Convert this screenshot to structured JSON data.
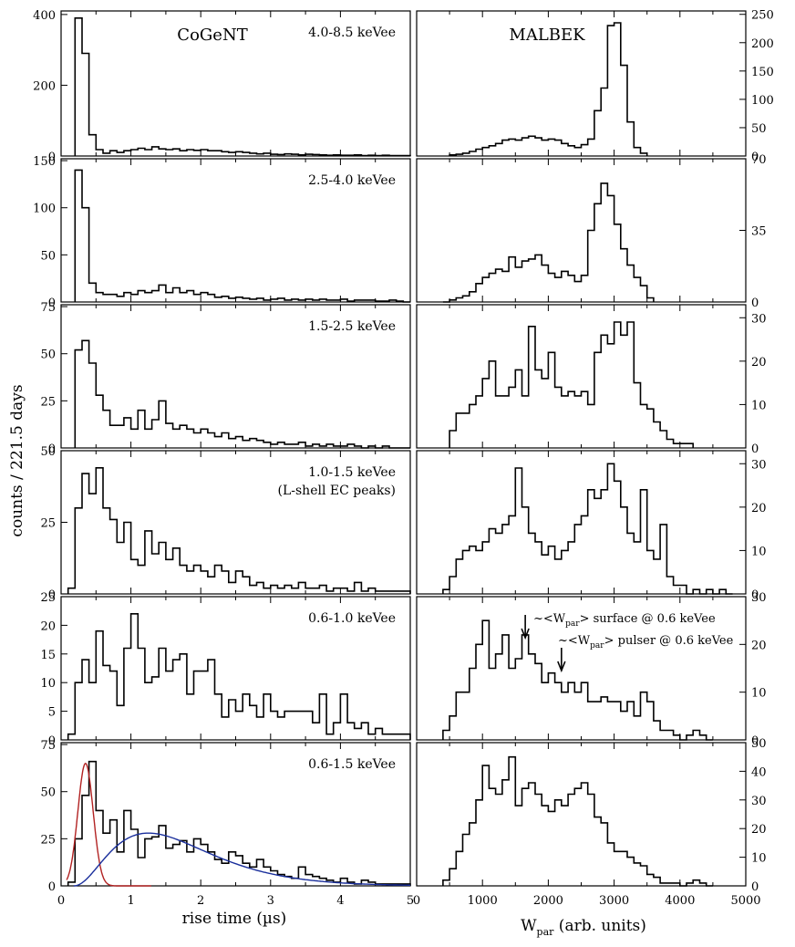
{
  "figure": {
    "y_axis_label": "counts / 221.5 days",
    "left_x_label": "rise time (µs)",
    "right_x_label_main": "W",
    "right_x_label_sub": "par",
    "right_x_label_tail": " (arb. units)",
    "left_column_title": "CoGeNT",
    "right_column_title": "MALBEK"
  },
  "chart_data": [
    {
      "type": "bar",
      "panel": "CoGeNT",
      "energy_label": "4.0-8.5 keVee",
      "xlim": [
        0,
        5
      ],
      "ylim": [
        0,
        410
      ],
      "yticks": [
        0,
        200,
        400
      ],
      "bin_edges": [
        0.2,
        0.3,
        0.4,
        0.5,
        0.6,
        0.7,
        0.8,
        0.9,
        1.0,
        1.1,
        1.2,
        1.3,
        1.4,
        1.5,
        1.6,
        1.7,
        1.8,
        1.9,
        2.0,
        2.1,
        2.2,
        2.3,
        2.4,
        2.5,
        2.6,
        2.7,
        2.8,
        2.9,
        3.0,
        3.1,
        3.2,
        3.3,
        3.4,
        3.5,
        3.6,
        3.7,
        3.8,
        3.9,
        4.0,
        4.1,
        4.2,
        4.3,
        4.4,
        4.5,
        4.6,
        4.7,
        4.8,
        4.9,
        5.0
      ],
      "values": [
        390,
        290,
        60,
        18,
        8,
        15,
        10,
        15,
        18,
        22,
        18,
        26,
        20,
        18,
        20,
        15,
        18,
        16,
        18,
        15,
        15,
        12,
        10,
        12,
        10,
        8,
        6,
        8,
        5,
        4,
        6,
        5,
        3,
        5,
        4,
        3,
        2,
        3,
        2,
        2,
        3,
        1,
        2,
        1,
        2,
        1,
        1,
        1
      ]
    },
    {
      "type": "bar",
      "panel": "MALBEK",
      "energy_label": "",
      "xlim": [
        0,
        5000
      ],
      "ylim": [
        0,
        256
      ],
      "yticks": [
        0,
        50,
        100,
        150,
        200,
        250
      ],
      "bin_edges": [
        500,
        600,
        700,
        800,
        900,
        1000,
        1100,
        1200,
        1300,
        1400,
        1500,
        1600,
        1700,
        1800,
        1900,
        2000,
        2100,
        2200,
        2300,
        2400,
        2500,
        2600,
        2700,
        2800,
        2900,
        3000,
        3100,
        3200,
        3300,
        3400,
        3500
      ],
      "values": [
        2,
        3,
        5,
        8,
        12,
        15,
        18,
        22,
        28,
        30,
        28,
        32,
        35,
        32,
        28,
        30,
        28,
        22,
        18,
        15,
        20,
        30,
        80,
        120,
        230,
        235,
        160,
        60,
        15,
        5
      ]
    },
    {
      "type": "bar",
      "panel": "CoGeNT",
      "energy_label": "2.5-4.0 keVee",
      "xlim": [
        0,
        5
      ],
      "ylim": [
        0,
        152
      ],
      "yticks": [
        0,
        50,
        100,
        150
      ],
      "bin_edges": [
        0.2,
        0.3,
        0.4,
        0.5,
        0.6,
        0.7,
        0.8,
        0.9,
        1.0,
        1.1,
        1.2,
        1.3,
        1.4,
        1.5,
        1.6,
        1.7,
        1.8,
        1.9,
        2.0,
        2.1,
        2.2,
        2.3,
        2.4,
        2.5,
        2.6,
        2.7,
        2.8,
        2.9,
        3.0,
        3.1,
        3.2,
        3.3,
        3.4,
        3.5,
        3.6,
        3.7,
        3.8,
        3.9,
        4.0,
        4.1,
        4.2,
        4.3,
        4.4,
        4.5,
        4.6,
        4.7,
        4.8,
        4.9,
        5.0
      ],
      "values": [
        140,
        100,
        20,
        10,
        8,
        8,
        6,
        10,
        8,
        12,
        10,
        12,
        18,
        10,
        15,
        10,
        12,
        8,
        10,
        8,
        5,
        6,
        4,
        5,
        4,
        3,
        4,
        2,
        3,
        4,
        2,
        3,
        2,
        3,
        2,
        3,
        2,
        2,
        3,
        1,
        2,
        2,
        2,
        1,
        1,
        2,
        1,
        0
      ]
    },
    {
      "type": "bar",
      "panel": "MALBEK",
      "energy_label": "",
      "xlim": [
        0,
        5000
      ],
      "ylim": [
        0,
        70
      ],
      "yticks": [
        0,
        35,
        70
      ],
      "bin_edges": [
        400,
        500,
        600,
        700,
        800,
        900,
        1000,
        1100,
        1200,
        1300,
        1400,
        1500,
        1600,
        1700,
        1800,
        1900,
        2000,
        2100,
        2200,
        2300,
        2400,
        2500,
        2600,
        2700,
        2800,
        2900,
        3000,
        3100,
        3200,
        3300,
        3400,
        3500,
        3600
      ],
      "values": [
        0,
        1,
        2,
        3,
        5,
        9,
        12,
        14,
        16,
        15,
        22,
        17,
        20,
        21,
        23,
        18,
        14,
        12,
        15,
        13,
        10,
        13,
        35,
        48,
        58,
        52,
        38,
        26,
        18,
        12,
        8,
        2
      ]
    },
    {
      "type": "bar",
      "panel": "CoGeNT",
      "energy_label": "1.5-2.5 keVee",
      "xlim": [
        0,
        5
      ],
      "ylim": [
        0,
        76
      ],
      "yticks": [
        0,
        25,
        50,
        75
      ],
      "bin_edges": [
        0.2,
        0.3,
        0.4,
        0.5,
        0.6,
        0.7,
        0.8,
        0.9,
        1.0,
        1.1,
        1.2,
        1.3,
        1.4,
        1.5,
        1.6,
        1.7,
        1.8,
        1.9,
        2.0,
        2.1,
        2.2,
        2.3,
        2.4,
        2.5,
        2.6,
        2.7,
        2.8,
        2.9,
        3.0,
        3.1,
        3.2,
        3.3,
        3.4,
        3.5,
        3.6,
        3.7,
        3.8,
        3.9,
        4.0,
        4.1,
        4.2,
        4.3,
        4.4,
        4.5,
        4.6,
        4.7,
        4.8,
        4.9,
        5.0
      ],
      "values": [
        52,
        57,
        45,
        28,
        20,
        12,
        12,
        16,
        10,
        20,
        10,
        15,
        25,
        13,
        10,
        12,
        10,
        8,
        10,
        8,
        6,
        8,
        5,
        6,
        4,
        5,
        4,
        3,
        2,
        3,
        2,
        2,
        3,
        1,
        2,
        1,
        2,
        1,
        1,
        2,
        1,
        0,
        1,
        0,
        1,
        0,
        0,
        0
      ]
    },
    {
      "type": "bar",
      "panel": "MALBEK",
      "energy_label": "",
      "xlim": [
        0,
        5000
      ],
      "ylim": [
        0,
        33
      ],
      "yticks": [
        0,
        10,
        20,
        30
      ],
      "bin_edges": [
        500,
        600,
        700,
        800,
        900,
        1000,
        1100,
        1200,
        1300,
        1400,
        1500,
        1600,
        1700,
        1800,
        1900,
        2000,
        2100,
        2200,
        2300,
        2400,
        2500,
        2600,
        2700,
        2800,
        2900,
        3000,
        3100,
        3200,
        3300,
        3400,
        3500,
        3600,
        3700,
        3800,
        3900,
        4000,
        4100,
        4200
      ],
      "values": [
        4,
        8,
        8,
        10,
        12,
        16,
        20,
        12,
        12,
        14,
        18,
        12,
        28,
        18,
        16,
        22,
        14,
        12,
        13,
        12,
        13,
        10,
        22,
        26,
        24,
        29,
        26,
        29,
        15,
        10,
        9,
        6,
        4,
        2,
        1,
        1,
        1
      ]
    },
    {
      "type": "bar",
      "panel": "CoGeNT",
      "energy_label": "1.0-1.5 keVee",
      "energy_note": "(L-shell EC peaks)",
      "xlim": [
        0,
        5
      ],
      "ylim": [
        0,
        50
      ],
      "yticks": [
        0,
        25,
        50
      ],
      "bin_edges": [
        0.1,
        0.2,
        0.3,
        0.4,
        0.5,
        0.6,
        0.7,
        0.8,
        0.9,
        1.0,
        1.1,
        1.2,
        1.3,
        1.4,
        1.5,
        1.6,
        1.7,
        1.8,
        1.9,
        2.0,
        2.1,
        2.2,
        2.3,
        2.4,
        2.5,
        2.6,
        2.7,
        2.8,
        2.9,
        3.0,
        3.1,
        3.2,
        3.3,
        3.4,
        3.5,
        3.6,
        3.7,
        3.8,
        3.9,
        4.0,
        4.1,
        4.2,
        4.3,
        4.4,
        4.5,
        4.6,
        4.7,
        4.8,
        4.9,
        5.0
      ],
      "values": [
        2,
        30,
        42,
        35,
        44,
        30,
        26,
        18,
        25,
        12,
        10,
        22,
        14,
        18,
        12,
        16,
        10,
        8,
        10,
        8,
        6,
        10,
        8,
        4,
        8,
        6,
        3,
        4,
        2,
        3,
        2,
        3,
        2,
        4,
        2,
        2,
        3,
        1,
        2,
        2,
        1,
        4,
        1,
        2,
        1,
        1,
        1,
        1,
        1
      ]
    },
    {
      "type": "bar",
      "panel": "MALBEK",
      "energy_label": "",
      "xlim": [
        0,
        5000
      ],
      "ylim": [
        0,
        33
      ],
      "yticks": [
        0,
        10,
        20,
        30
      ],
      "bin_edges": [
        400,
        500,
        600,
        700,
        800,
        900,
        1000,
        1100,
        1200,
        1300,
        1400,
        1500,
        1600,
        1700,
        1800,
        1900,
        2000,
        2100,
        2200,
        2300,
        2400,
        2500,
        2600,
        2700,
        2800,
        2900,
        3000,
        3100,
        3200,
        3300,
        3400,
        3500,
        3600,
        3700,
        3800,
        3900,
        4000,
        4100,
        4200,
        4300,
        4400,
        4500,
        4600,
        4700,
        4800
      ],
      "values": [
        1,
        4,
        8,
        10,
        11,
        10,
        12,
        15,
        14,
        16,
        18,
        29,
        20,
        14,
        12,
        9,
        11,
        8,
        10,
        12,
        16,
        18,
        24,
        22,
        24,
        30,
        26,
        20,
        14,
        12,
        24,
        10,
        8,
        16,
        4,
        2,
        2,
        0,
        1,
        0,
        1,
        0,
        1,
        0
      ]
    },
    {
      "type": "bar",
      "panel": "CoGeNT",
      "energy_label": "0.6-1.0 keVee",
      "xlim": [
        0,
        5
      ],
      "ylim": [
        0,
        25
      ],
      "yticks": [
        0,
        5,
        10,
        15,
        20,
        25
      ],
      "bin_edges": [
        0.1,
        0.2,
        0.3,
        0.4,
        0.5,
        0.6,
        0.7,
        0.8,
        0.9,
        1.0,
        1.1,
        1.2,
        1.3,
        1.4,
        1.5,
        1.6,
        1.7,
        1.8,
        1.9,
        2.0,
        2.1,
        2.2,
        2.3,
        2.4,
        2.5,
        2.6,
        2.7,
        2.8,
        2.9,
        3.0,
        3.1,
        3.2,
        3.3,
        3.4,
        3.5,
        3.6,
        3.7,
        3.8,
        3.9,
        4.0,
        4.1,
        4.2,
        4.3,
        4.4,
        4.5,
        4.6,
        4.7,
        4.8,
        4.9,
        5.0
      ],
      "values": [
        1,
        10,
        14,
        10,
        19,
        13,
        12,
        6,
        16,
        22,
        16,
        10,
        11,
        16,
        12,
        14,
        15,
        8,
        12,
        12,
        14,
        8,
        4,
        7,
        5,
        8,
        6,
        4,
        8,
        5,
        4,
        5,
        5,
        5,
        5,
        3,
        8,
        1,
        3,
        8,
        3,
        2,
        3,
        1,
        2,
        1,
        1,
        1,
        1
      ]
    },
    {
      "type": "bar",
      "panel": "MALBEK",
      "energy_label": "",
      "xlim": [
        0,
        5000
      ],
      "ylim": [
        0,
        30
      ],
      "yticks": [
        0,
        10,
        20,
        30
      ],
      "bin_edges": [
        400,
        500,
        600,
        700,
        800,
        900,
        1000,
        1100,
        1200,
        1300,
        1400,
        1500,
        1600,
        1700,
        1800,
        1900,
        2000,
        2100,
        2200,
        2300,
        2400,
        2500,
        2600,
        2700,
        2800,
        2900,
        3000,
        3100,
        3200,
        3300,
        3400,
        3500,
        3600,
        3700,
        3800,
        3900,
        4000,
        4100,
        4200,
        4300,
        4400,
        4500
      ],
      "values": [
        2,
        5,
        10,
        10,
        15,
        20,
        25,
        15,
        18,
        22,
        15,
        17,
        22,
        18,
        16,
        12,
        14,
        12,
        10,
        12,
        10,
        12,
        8,
        8,
        9,
        8,
        8,
        6,
        8,
        5,
        10,
        8,
        4,
        2,
        2,
        1,
        0,
        1,
        2,
        1,
        0
      ]
    },
    {
      "type": "bar",
      "panel": "CoGeNT",
      "energy_label": "0.6-1.5 keVee",
      "xlim": [
        0,
        5
      ],
      "ylim": [
        0,
        76
      ],
      "yticks": [
        0,
        25,
        50,
        75
      ],
      "bin_edges": [
        0.1,
        0.2,
        0.3,
        0.4,
        0.5,
        0.6,
        0.7,
        0.8,
        0.9,
        1.0,
        1.1,
        1.2,
        1.3,
        1.4,
        1.5,
        1.6,
        1.7,
        1.8,
        1.9,
        2.0,
        2.1,
        2.2,
        2.3,
        2.4,
        2.5,
        2.6,
        2.7,
        2.8,
        2.9,
        3.0,
        3.1,
        3.2,
        3.3,
        3.4,
        3.5,
        3.6,
        3.7,
        3.8,
        3.9,
        4.0,
        4.1,
        4.2,
        4.3,
        4.4,
        4.5,
        4.6,
        4.7,
        4.8,
        4.9,
        5.0
      ],
      "values": [
        2,
        25,
        48,
        66,
        40,
        28,
        35,
        18,
        40,
        30,
        15,
        25,
        26,
        32,
        20,
        22,
        24,
        18,
        25,
        22,
        18,
        14,
        12,
        18,
        16,
        12,
        10,
        14,
        10,
        8,
        6,
        5,
        4,
        10,
        6,
        5,
        4,
        3,
        2,
        4,
        2,
        1,
        3,
        2,
        1,
        1,
        1,
        1,
        1
      ]
    },
    {
      "type": "bar",
      "panel": "MALBEK",
      "energy_label": "",
      "xlim": [
        0,
        5000
      ],
      "ylim": [
        0,
        50
      ],
      "yticks": [
        0,
        10,
        20,
        30,
        40,
        50
      ],
      "bin_edges": [
        400,
        500,
        600,
        700,
        800,
        900,
        1000,
        1100,
        1200,
        1300,
        1400,
        1500,
        1600,
        1700,
        1800,
        1900,
        2000,
        2100,
        2200,
        2300,
        2400,
        2500,
        2600,
        2700,
        2800,
        2900,
        3000,
        3100,
        3200,
        3300,
        3400,
        3500,
        3600,
        3700,
        3800,
        3900,
        4000,
        4100,
        4200,
        4300,
        4400,
        4500
      ],
      "values": [
        2,
        6,
        12,
        18,
        22,
        30,
        42,
        34,
        32,
        37,
        45,
        28,
        34,
        36,
        32,
        28,
        26,
        30,
        28,
        32,
        34,
        36,
        32,
        24,
        22,
        15,
        12,
        12,
        10,
        8,
        7,
        4,
        3,
        1,
        1,
        1,
        0,
        1,
        2,
        1,
        0
      ]
    }
  ],
  "malbek_x_ticks": [
    "0",
    "1000",
    "2000",
    "3000",
    "4000",
    "5000"
  ],
  "cogent_x_ticks": [
    "0",
    "1",
    "2",
    "3",
    "4",
    "5"
  ],
  "fit_curves": {
    "surface_peak": {
      "color": "#b22222",
      "mu": 0.35,
      "sigma": 0.11,
      "amplitude": 65
    },
    "bulk_component": {
      "color": "#1a2f9c",
      "peak_x": 1.25,
      "amplitude": 28
    }
  },
  "annotations": {
    "surface": {
      "pre": "~<W",
      "sub": "par",
      "post": "> surface @ 0.6 keVee",
      "x_data": 1650
    },
    "pulser": {
      "pre": "~<W",
      "sub": "par",
      "post": "> pulser @ 0.6 keVee",
      "x_data": 2200
    }
  }
}
